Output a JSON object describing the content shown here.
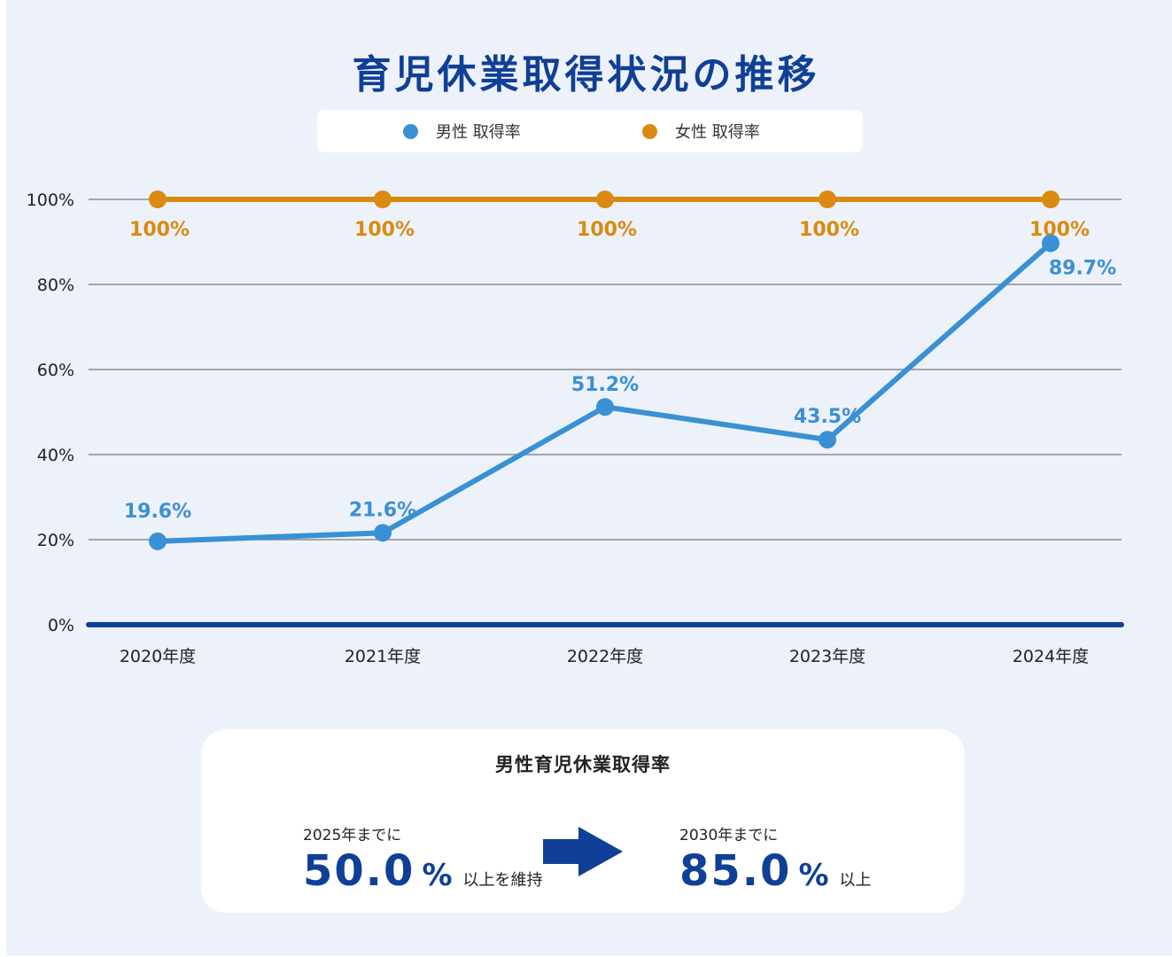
{
  "title": "育児休業取得状況の推移",
  "colors": {
    "background": "#edf1fa",
    "title": "#0f3f96",
    "male": "#3a90d4",
    "female": "#da8a10",
    "baseline": "#0f3f96",
    "grid": "#8c8c8c"
  },
  "legend": [
    {
      "label": "男性 取得率",
      "color": "#3a90d4"
    },
    {
      "label": "女性 取得率",
      "color": "#da8a10"
    }
  ],
  "chart_data": {
    "type": "line",
    "title": "育児休業取得状況の推移",
    "categories": [
      "2020年度",
      "2021年度",
      "2022年度",
      "2023年度",
      "2024年度"
    ],
    "y_ticks": [
      "0%",
      "20%",
      "40%",
      "60%",
      "80%",
      "100%"
    ],
    "ylim": [
      0,
      100
    ],
    "grid": true,
    "legend_position": "top-center",
    "series": [
      {
        "name": "男性 取得率",
        "color": "#3a90d4",
        "values": [
          19.6,
          21.6,
          51.2,
          43.5,
          89.7
        ],
        "labels": [
          "19.6%",
          "21.6%",
          "51.2%",
          "43.5%",
          "89.7%"
        ]
      },
      {
        "name": "女性 取得率",
        "color": "#da8a10",
        "values": [
          100,
          100,
          100,
          100,
          100
        ],
        "labels": [
          "100%",
          "100%",
          "100%",
          "100%",
          "100%"
        ]
      }
    ]
  },
  "target": {
    "title": "男性育児休業取得率",
    "current": {
      "when": "2025年までに",
      "value": "50.0",
      "unit": "%",
      "note": "以上を維持"
    },
    "future": {
      "when": "2030年までに",
      "value": "85.0",
      "unit": "%",
      "note": "以上"
    },
    "arrow_icon": "right-arrow-icon"
  }
}
